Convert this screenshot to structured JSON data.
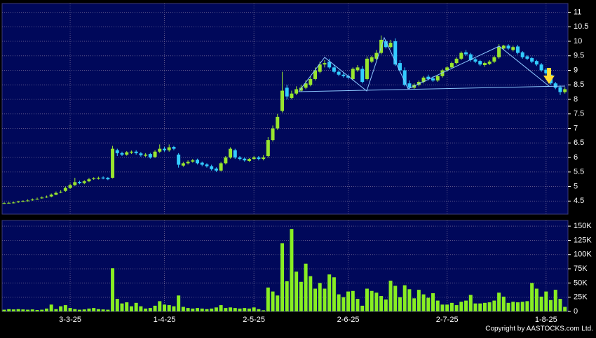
{
  "chart_data": {
    "type": "candlestick",
    "categories": [
      null,
      null,
      null,
      null,
      null,
      null,
      null,
      null,
      null,
      null,
      null,
      null,
      null,
      null,
      "3-3-25",
      null,
      null,
      null,
      null,
      null,
      null,
      null,
      null,
      null,
      null,
      null,
      null,
      null,
      null,
      null,
      null,
      null,
      null,
      null,
      "1-4-25",
      null,
      null,
      null,
      null,
      null,
      null,
      null,
      null,
      null,
      null,
      null,
      null,
      null,
      null,
      null,
      null,
      null,
      null,
      "2-5-25",
      null,
      null,
      null,
      null,
      null,
      null,
      null,
      null,
      null,
      null,
      null,
      null,
      null,
      null,
      null,
      null,
      null,
      null,
      null,
      "2-6-25",
      null,
      null,
      null,
      null,
      null,
      null,
      null,
      null,
      null,
      null,
      null,
      null,
      null,
      null,
      null,
      null,
      null,
      null,
      null,
      null,
      "2-7-25",
      null,
      null,
      null,
      null,
      null,
      null,
      null,
      null,
      null,
      null,
      null,
      null,
      null,
      null,
      null,
      null,
      null,
      null,
      null,
      null,
      "1-8-25",
      null,
      null,
      null,
      null
    ],
    "open": [
      4.42,
      4.43,
      4.44,
      4.46,
      4.48,
      4.5,
      4.53,
      4.56,
      4.6,
      4.63,
      4.66,
      4.72,
      4.8,
      4.85,
      4.95,
      5.05,
      5.16,
      5.12,
      5.18,
      5.26,
      5.27,
      5.31,
      5.3,
      5.3,
      6.25,
      6.15,
      6.1,
      6.17,
      6.2,
      6.14,
      6.06,
      6.12,
      6.02,
      6.2,
      6.3,
      6.25,
      6.36,
      6.1,
      5.72,
      5.8,
      5.86,
      5.92,
      5.82,
      5.76,
      5.7,
      5.62,
      5.55,
      5.8,
      6.0,
      6.25,
      6.0,
      5.96,
      5.88,
      5.95,
      6.0,
      5.95,
      6.05,
      6.6,
      7.0,
      7.6,
      8.4,
      8.05,
      8.2,
      8.3,
      8.4,
      8.5,
      8.7,
      8.95,
      9.2,
      9.3,
      9.1,
      8.95,
      8.85,
      8.8,
      8.7,
      9.0,
      9.05,
      8.7,
      9.3,
      9.4,
      9.6,
      10.0,
      9.8,
      10.0,
      9.25,
      9.0,
      8.55,
      8.4,
      8.5,
      8.6,
      8.78,
      8.72,
      8.65,
      8.8,
      9.0,
      9.1,
      9.25,
      9.4,
      9.62,
      9.55,
      9.38,
      9.32,
      9.18,
      9.22,
      9.3,
      9.45,
      9.75,
      9.85,
      9.7,
      9.82,
      9.62,
      9.48,
      9.42,
      9.32,
      9.2,
      9.02,
      8.85,
      8.55,
      8.42,
      8.25
    ],
    "high": [
      4.46,
      4.47,
      4.48,
      4.51,
      4.53,
      4.56,
      4.59,
      4.62,
      4.66,
      4.69,
      4.76,
      4.83,
      4.87,
      5.0,
      5.1,
      5.3,
      5.2,
      5.22,
      5.3,
      5.32,
      5.34,
      5.35,
      5.33,
      6.4,
      6.3,
      6.2,
      6.22,
      6.24,
      6.25,
      6.19,
      6.15,
      6.16,
      6.25,
      6.45,
      6.36,
      6.45,
      6.4,
      6.15,
      5.85,
      5.9,
      5.95,
      5.96,
      5.86,
      5.8,
      5.75,
      5.66,
      5.85,
      6.05,
      6.35,
      6.3,
      6.05,
      6.0,
      5.98,
      6.05,
      6.05,
      6.08,
      6.7,
      7.1,
      7.5,
      8.95,
      8.5,
      8.3,
      8.45,
      8.5,
      8.65,
      8.8,
      9.1,
      9.3,
      9.35,
      9.4,
      9.2,
      9.0,
      8.92,
      8.86,
      9.1,
      9.18,
      9.15,
      9.48,
      9.5,
      9.7,
      10.2,
      10.05,
      10.05,
      10.1,
      9.35,
      9.1,
      8.65,
      8.55,
      8.65,
      8.8,
      8.85,
      8.8,
      8.85,
      9.05,
      9.15,
      9.3,
      9.45,
      9.65,
      9.7,
      9.6,
      9.42,
      9.36,
      9.3,
      9.35,
      9.5,
      9.9,
      9.88,
      9.9,
      9.85,
      9.88,
      9.66,
      9.52,
      9.46,
      9.36,
      9.25,
      9.08,
      8.9,
      8.6,
      8.48,
      8.42
    ],
    "low": [
      4.4,
      4.41,
      4.42,
      4.44,
      4.46,
      4.48,
      4.51,
      4.54,
      4.58,
      4.61,
      4.63,
      4.7,
      4.77,
      4.82,
      4.92,
      5.02,
      5.08,
      5.08,
      5.15,
      5.23,
      5.24,
      5.25,
      5.22,
      5.28,
      6.05,
      6.05,
      6.06,
      6.12,
      6.1,
      6.03,
      6.02,
      5.96,
      5.98,
      6.15,
      6.2,
      6.2,
      6.25,
      5.65,
      5.68,
      5.76,
      5.82,
      5.76,
      5.7,
      5.65,
      5.55,
      5.5,
      5.52,
      5.76,
      5.96,
      5.95,
      5.9,
      5.86,
      5.85,
      5.92,
      5.9,
      5.9,
      6.0,
      6.55,
      6.95,
      7.55,
      8.0,
      8.0,
      8.15,
      8.25,
      8.35,
      8.45,
      8.65,
      8.9,
      9.1,
      9.05,
      8.9,
      8.8,
      8.75,
      8.7,
      8.65,
      8.95,
      8.55,
      8.65,
      9.25,
      9.35,
      9.55,
      9.75,
      9.75,
      9.15,
      8.95,
      8.45,
      8.35,
      8.35,
      8.45,
      8.55,
      8.65,
      8.6,
      8.6,
      8.75,
      8.95,
      9.05,
      9.2,
      9.35,
      9.5,
      9.3,
      9.25,
      9.15,
      9.12,
      9.18,
      9.25,
      9.4,
      9.7,
      9.7,
      9.65,
      9.55,
      9.4,
      9.35,
      9.25,
      9.15,
      8.95,
      8.85,
      8.5,
      8.35,
      8.15,
      8.2
    ],
    "close": [
      4.43,
      4.44,
      4.45,
      4.48,
      4.5,
      4.52,
      4.55,
      4.58,
      4.62,
      4.65,
      4.72,
      4.78,
      4.82,
      4.95,
      5.05,
      5.15,
      5.12,
      5.18,
      5.25,
      5.28,
      5.3,
      5.28,
      5.25,
      6.3,
      6.15,
      6.1,
      6.18,
      6.2,
      6.15,
      6.08,
      6.1,
      6.0,
      6.2,
      6.3,
      6.25,
      6.35,
      6.3,
      5.75,
      5.8,
      5.85,
      5.9,
      5.8,
      5.75,
      5.7,
      5.6,
      5.55,
      5.8,
      6.0,
      6.3,
      6.0,
      5.95,
      5.9,
      5.95,
      6.0,
      5.95,
      6.0,
      6.6,
      7.0,
      7.4,
      8.3,
      8.1,
      8.2,
      8.35,
      8.4,
      8.55,
      8.7,
      9.0,
      9.2,
      9.25,
      9.1,
      8.95,
      8.85,
      8.8,
      8.75,
      9.05,
      9.1,
      8.6,
      9.4,
      9.45,
      9.6,
      10.05,
      9.8,
      9.95,
      9.2,
      9.0,
      8.5,
      8.4,
      8.5,
      8.6,
      8.75,
      8.7,
      8.65,
      8.8,
      9.0,
      9.1,
      9.25,
      9.4,
      9.6,
      9.55,
      9.35,
      9.3,
      9.2,
      9.25,
      9.3,
      9.45,
      9.8,
      9.85,
      9.75,
      9.8,
      9.6,
      9.45,
      9.4,
      9.3,
      9.2,
      9.0,
      8.9,
      8.55,
      8.4,
      8.25,
      8.35
    ],
    "ylim": [
      4.05,
      11.3
    ],
    "yticks": [
      4.5,
      5,
      5.5,
      6,
      6.5,
      7,
      7.5,
      8,
      8.5,
      9,
      9.5,
      10,
      10.5,
      11
    ],
    "up_color": "#99e62e",
    "down_color": "#33ccff",
    "grid": true,
    "volume": {
      "values": [
        3000,
        4000,
        3500,
        4000,
        3500,
        3000,
        3500,
        2500,
        3000,
        5000,
        12000,
        4000,
        9000,
        11000,
        6000,
        4000,
        3000,
        3500,
        5000,
        6000,
        4000,
        3500,
        3000,
        76000,
        22000,
        14000,
        16000,
        9000,
        15000,
        9000,
        5000,
        6000,
        10000,
        18000,
        12000,
        11000,
        9000,
        28000,
        8000,
        6000,
        5000,
        6000,
        5000,
        4000,
        5000,
        7000,
        11000,
        6000,
        7000,
        6000,
        5000,
        6000,
        5000,
        7000,
        4000,
        2000,
        42000,
        35000,
        28000,
        120000,
        53000,
        145000,
        70000,
        52000,
        84000,
        62000,
        40000,
        50000,
        40000,
        65000,
        60000,
        30000,
        25000,
        35000,
        36000,
        22000,
        10000,
        40000,
        36000,
        33000,
        27000,
        21000,
        54000,
        45000,
        25000,
        46000,
        39000,
        23000,
        38000,
        30000,
        24000,
        32000,
        19000,
        12000,
        12000,
        15000,
        11000,
        17000,
        19000,
        29000,
        14000,
        14000,
        15000,
        16000,
        19000,
        33000,
        26000,
        15000,
        17000,
        16000,
        17000,
        18000,
        50000,
        40000,
        26000,
        35000,
        20000,
        38000,
        22000,
        8000
      ],
      "color": "#88ee22",
      "ylim": [
        0,
        160000
      ],
      "yticks": [
        0,
        {
          "value": 25000,
          "label": "25K"
        },
        {
          "value": 50000,
          "label": "50K"
        },
        {
          "value": 75000,
          "label": "75K"
        },
        {
          "value": 100000,
          "label": "100K"
        },
        {
          "value": 125000,
          "label": "125K"
        },
        {
          "value": 150000,
          "label": "150K"
        }
      ]
    }
  },
  "copyright": "Copyright by AASTOCKS.com Ltd."
}
